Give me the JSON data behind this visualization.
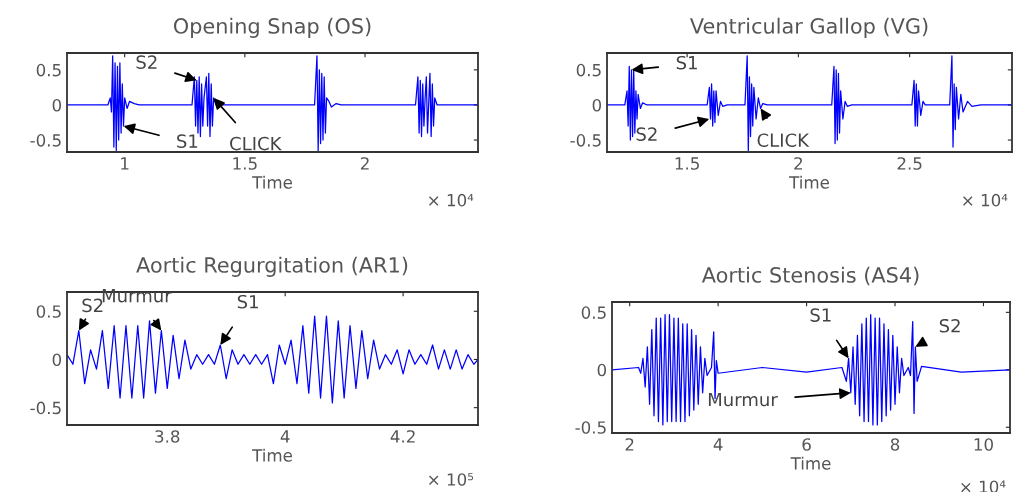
{
  "chart_data": [
    {
      "type": "line",
      "title": "Opening Snap (OS)",
      "xlabel": "Time",
      "xlim": [
        0.76,
        2.47
      ],
      "ylim": [
        -0.67,
        0.74
      ],
      "xticks": [
        1,
        1.5,
        2
      ],
      "yticks": [
        -0.5,
        0,
        0.5
      ],
      "grid": false,
      "series": [
        {
          "color": "#0000ff",
          "x": [
            0.76,
            0.93,
            0.94,
            0.945,
            0.95,
            0.955,
            0.96,
            0.965,
            0.97,
            0.975,
            0.98,
            0.985,
            0.99,
            0.995,
            1.0,
            1.01,
            1.02,
            1.04,
            1.06,
            1.28,
            1.29,
            1.295,
            1.3,
            1.305,
            1.31,
            1.315,
            1.32,
            1.325,
            1.33,
            1.34,
            1.345,
            1.35,
            1.355,
            1.36,
            1.365,
            1.37,
            1.38,
            1.79,
            1.8,
            1.805,
            1.81,
            1.815,
            1.82,
            1.825,
            1.83,
            1.835,
            1.84,
            1.85,
            1.86,
            1.88,
            1.9,
            2.21,
            2.22,
            2.225,
            2.23,
            2.235,
            2.24,
            2.245,
            2.25,
            2.255,
            2.26,
            2.27,
            2.275,
            2.28,
            2.285,
            2.29,
            2.3,
            2.47
          ],
          "values": [
            0,
            0,
            0.1,
            -0.1,
            0.7,
            -0.6,
            0.6,
            -0.65,
            0.55,
            -0.5,
            0.6,
            -0.4,
            0.3,
            -0.3,
            0.1,
            -0.05,
            0.05,
            0.02,
            0,
            0,
            0.4,
            -0.3,
            0.35,
            -0.4,
            0.4,
            -0.45,
            0.3,
            -0.3,
            0.1,
            0.4,
            -0.3,
            0.45,
            -0.45,
            0.3,
            -0.3,
            0.1,
            0,
            0,
            0.7,
            -0.65,
            0.5,
            -0.55,
            0.45,
            -0.5,
            0.4,
            -0.4,
            0.1,
            0.05,
            -0.03,
            0.02,
            0,
            0,
            0.4,
            -0.4,
            0.35,
            -0.45,
            0.3,
            -0.3,
            0.1,
            0.4,
            -0.4,
            0.45,
            -0.45,
            0.3,
            -0.3,
            0.1,
            0,
            0
          ]
        }
      ],
      "annotations": [
        {
          "text": "S2",
          "x": 1.3,
          "y": 0.35
        },
        {
          "text": "S1",
          "x": 0.995,
          "y": -0.3
        },
        {
          "text": "CLICK",
          "x": 1.37,
          "y": 0.1
        },
        "× 10⁴"
      ]
    },
    {
      "type": "line",
      "title": "Ventricular Gallop (VG)",
      "xlabel": "Time",
      "xlim": [
        1.14,
        2.96
      ],
      "ylim": [
        -0.67,
        0.74
      ],
      "xticks": [
        1.5,
        2,
        2.5
      ],
      "yticks": [
        -0.5,
        0,
        0.5
      ],
      "grid": false,
      "series": [
        {
          "color": "#0000ff",
          "x": [
            1.14,
            1.22,
            1.23,
            1.235,
            1.24,
            1.245,
            1.25,
            1.255,
            1.26,
            1.265,
            1.27,
            1.275,
            1.28,
            1.29,
            1.3,
            1.32,
            1.59,
            1.6,
            1.605,
            1.61,
            1.615,
            1.62,
            1.625,
            1.63,
            1.64,
            1.65,
            1.66,
            1.68,
            1.76,
            1.77,
            1.775,
            1.78,
            1.785,
            1.79,
            1.795,
            1.8,
            1.81,
            1.82,
            1.83,
            1.84,
            1.86,
            2.15,
            2.16,
            2.165,
            2.17,
            2.175,
            2.18,
            2.185,
            2.19,
            2.2,
            2.21,
            2.22,
            2.24,
            2.51,
            2.52,
            2.525,
            2.53,
            2.535,
            2.54,
            2.55,
            2.56,
            2.57,
            2.68,
            2.69,
            2.695,
            2.7,
            2.705,
            2.71,
            2.72,
            2.73,
            2.74,
            2.76,
            2.78,
            2.82,
            2.96
          ],
          "values": [
            0,
            0,
            0.2,
            -0.3,
            0.55,
            -0.5,
            0.5,
            -0.45,
            0.5,
            -0.4,
            0.2,
            -0.2,
            0.15,
            -0.05,
            0.03,
            0,
            0,
            0.25,
            -0.2,
            0.3,
            -0.3,
            0.2,
            -0.25,
            0.2,
            -0.15,
            0.05,
            -0.02,
            0,
            0,
            0.7,
            -0.65,
            0.4,
            -0.45,
            0.3,
            -0.3,
            0.25,
            -0.2,
            0.1,
            -0.05,
            0.02,
            0,
            0,
            0.55,
            -0.55,
            0.5,
            -0.5,
            0.45,
            -0.4,
            0.2,
            -0.2,
            0.05,
            -0.02,
            0,
            0,
            0.35,
            -0.3,
            0.3,
            -0.3,
            0.2,
            -0.15,
            0.05,
            0,
            0,
            0.7,
            -0.6,
            0.3,
            -0.35,
            0.25,
            -0.2,
            0.15,
            -0.1,
            0.05,
            -0.02,
            0,
            0
          ]
        }
      ],
      "annotations": [
        {
          "text": "S1",
          "x": 1.25,
          "y": 0.5
        },
        {
          "text": "S2",
          "x": 1.6,
          "y": -0.2
        },
        {
          "text": "CLICK",
          "x": 1.83,
          "y": -0.05
        },
        "× 10⁴"
      ]
    },
    {
      "type": "line",
      "title": "Aortic Regurgitation (AR1)",
      "xlabel": "Time",
      "xlim": [
        3.63,
        4.327
      ],
      "ylim": [
        -0.68,
        0.7
      ],
      "xticks": [
        3.8,
        4,
        4.2
      ],
      "yticks": [
        -0.5,
        0,
        0.5
      ],
      "grid": false,
      "series": [
        {
          "color": "#0000ff",
          "x": [
            3.63,
            3.64,
            3.65,
            3.66,
            3.67,
            3.68,
            3.69,
            3.7,
            3.71,
            3.72,
            3.73,
            3.74,
            3.75,
            3.76,
            3.77,
            3.78,
            3.79,
            3.8,
            3.81,
            3.82,
            3.83,
            3.84,
            3.85,
            3.86,
            3.87,
            3.88,
            3.89,
            3.9,
            3.91,
            3.92,
            3.93,
            3.94,
            3.95,
            3.96,
            3.97,
            3.98,
            3.99,
            4.0,
            4.01,
            4.02,
            4.03,
            4.04,
            4.05,
            4.06,
            4.07,
            4.08,
            4.09,
            4.1,
            4.11,
            4.12,
            4.13,
            4.14,
            4.15,
            4.16,
            4.17,
            4.18,
            4.19,
            4.2,
            4.21,
            4.22,
            4.23,
            4.24,
            4.25,
            4.26,
            4.27,
            4.28,
            4.29,
            4.3,
            4.31,
            4.32,
            4.327
          ],
          "values": [
            0.05,
            -0.05,
            0.3,
            -0.25,
            0.1,
            -0.1,
            0.3,
            -0.3,
            0.35,
            -0.4,
            0.35,
            -0.4,
            0.35,
            -0.4,
            0.4,
            -0.35,
            0.3,
            -0.3,
            0.25,
            -0.2,
            0.2,
            -0.1,
            0.05,
            -0.05,
            0.05,
            -0.05,
            0.15,
            -0.2,
            0.1,
            -0.05,
            0.05,
            -0.05,
            0.05,
            -0.05,
            0.05,
            -0.25,
            0.15,
            -0.05,
            0.2,
            -0.25,
            0.35,
            -0.35,
            0.45,
            -0.4,
            0.45,
            -0.45,
            0.4,
            -0.4,
            0.35,
            -0.3,
            0.3,
            -0.2,
            0.2,
            -0.1,
            0.05,
            -0.05,
            0.1,
            -0.15,
            0.1,
            -0.05,
            0.05,
            -0.05,
            0.15,
            -0.1,
            0.1,
            -0.1,
            0.1,
            -0.1,
            0.05,
            -0.05,
            0
          ]
        }
      ],
      "annotations": [
        {
          "text": "S2",
          "x": 3.65,
          "y": 0.3
        },
        {
          "text": "Murmur",
          "x": 3.79,
          "y": 0.3
        },
        {
          "text": "S1",
          "x": 3.89,
          "y": 0.15
        },
        "× 10⁵"
      ]
    },
    {
      "type": "line",
      "title": "Aortic Stenosis (AS4)",
      "xlabel": "Time",
      "xlim": [
        1.6,
        10.6
      ],
      "ylim": [
        -0.55,
        0.59
      ],
      "xticks": [
        2,
        4,
        6,
        8,
        10
      ],
      "yticks": [
        -0.5,
        0,
        0.5
      ],
      "grid": false,
      "series": [
        {
          "color": "#0000ff",
          "x": [
            1.6,
            2.2,
            2.25,
            2.3,
            2.35,
            2.4,
            2.45,
            2.5,
            2.55,
            2.6,
            2.65,
            2.7,
            2.75,
            2.8,
            2.85,
            2.9,
            2.95,
            3.0,
            3.05,
            3.1,
            3.15,
            3.2,
            3.25,
            3.3,
            3.35,
            3.4,
            3.45,
            3.5,
            3.55,
            3.6,
            3.65,
            3.7,
            3.75,
            3.85,
            3.9,
            3.93,
            3.96,
            4.0,
            5.0,
            6.0,
            6.8,
            6.9,
            6.95,
            7.0,
            7.05,
            7.1,
            7.15,
            7.2,
            7.25,
            7.3,
            7.35,
            7.4,
            7.45,
            7.5,
            7.55,
            7.6,
            7.65,
            7.7,
            7.75,
            7.8,
            7.85,
            7.9,
            7.95,
            8.0,
            8.05,
            8.1,
            8.15,
            8.2,
            8.3,
            8.35,
            8.4,
            8.43,
            8.46,
            8.5,
            8.6,
            9.5,
            10.6
          ],
          "values": [
            0,
            0.02,
            -0.03,
            0.1,
            -0.15,
            0.2,
            -0.3,
            0.35,
            -0.4,
            0.45,
            -0.45,
            0.45,
            -0.48,
            0.48,
            -0.45,
            0.48,
            -0.45,
            0.45,
            -0.45,
            0.45,
            -0.45,
            0.4,
            -0.45,
            0.4,
            -0.4,
            0.35,
            -0.35,
            0.3,
            -0.3,
            0.2,
            -0.2,
            0.1,
            -0.05,
            0.02,
            0.33,
            -0.25,
            0.08,
            -0.03,
            0.02,
            -0.02,
            0.02,
            -0.1,
            0.1,
            -0.2,
            0.2,
            -0.3,
            0.3,
            -0.4,
            0.4,
            -0.45,
            0.45,
            -0.45,
            0.48,
            -0.48,
            0.45,
            -0.48,
            0.45,
            -0.45,
            0.4,
            -0.4,
            0.35,
            -0.35,
            0.3,
            -0.3,
            0.2,
            -0.2,
            0.1,
            -0.05,
            0.02,
            -0.05,
            0.42,
            -0.38,
            0.2,
            -0.1,
            0.03,
            -0.02,
            0
          ]
        }
      ],
      "annotations": [
        {
          "text": "S1",
          "x": 6.95,
          "y": 0.1
        },
        {
          "text": "S2",
          "x": 8.46,
          "y": 0.2
        },
        {
          "text": "Murmur",
          "x": 7.0,
          "y": -0.2
        },
        "× 10⁴"
      ]
    }
  ]
}
